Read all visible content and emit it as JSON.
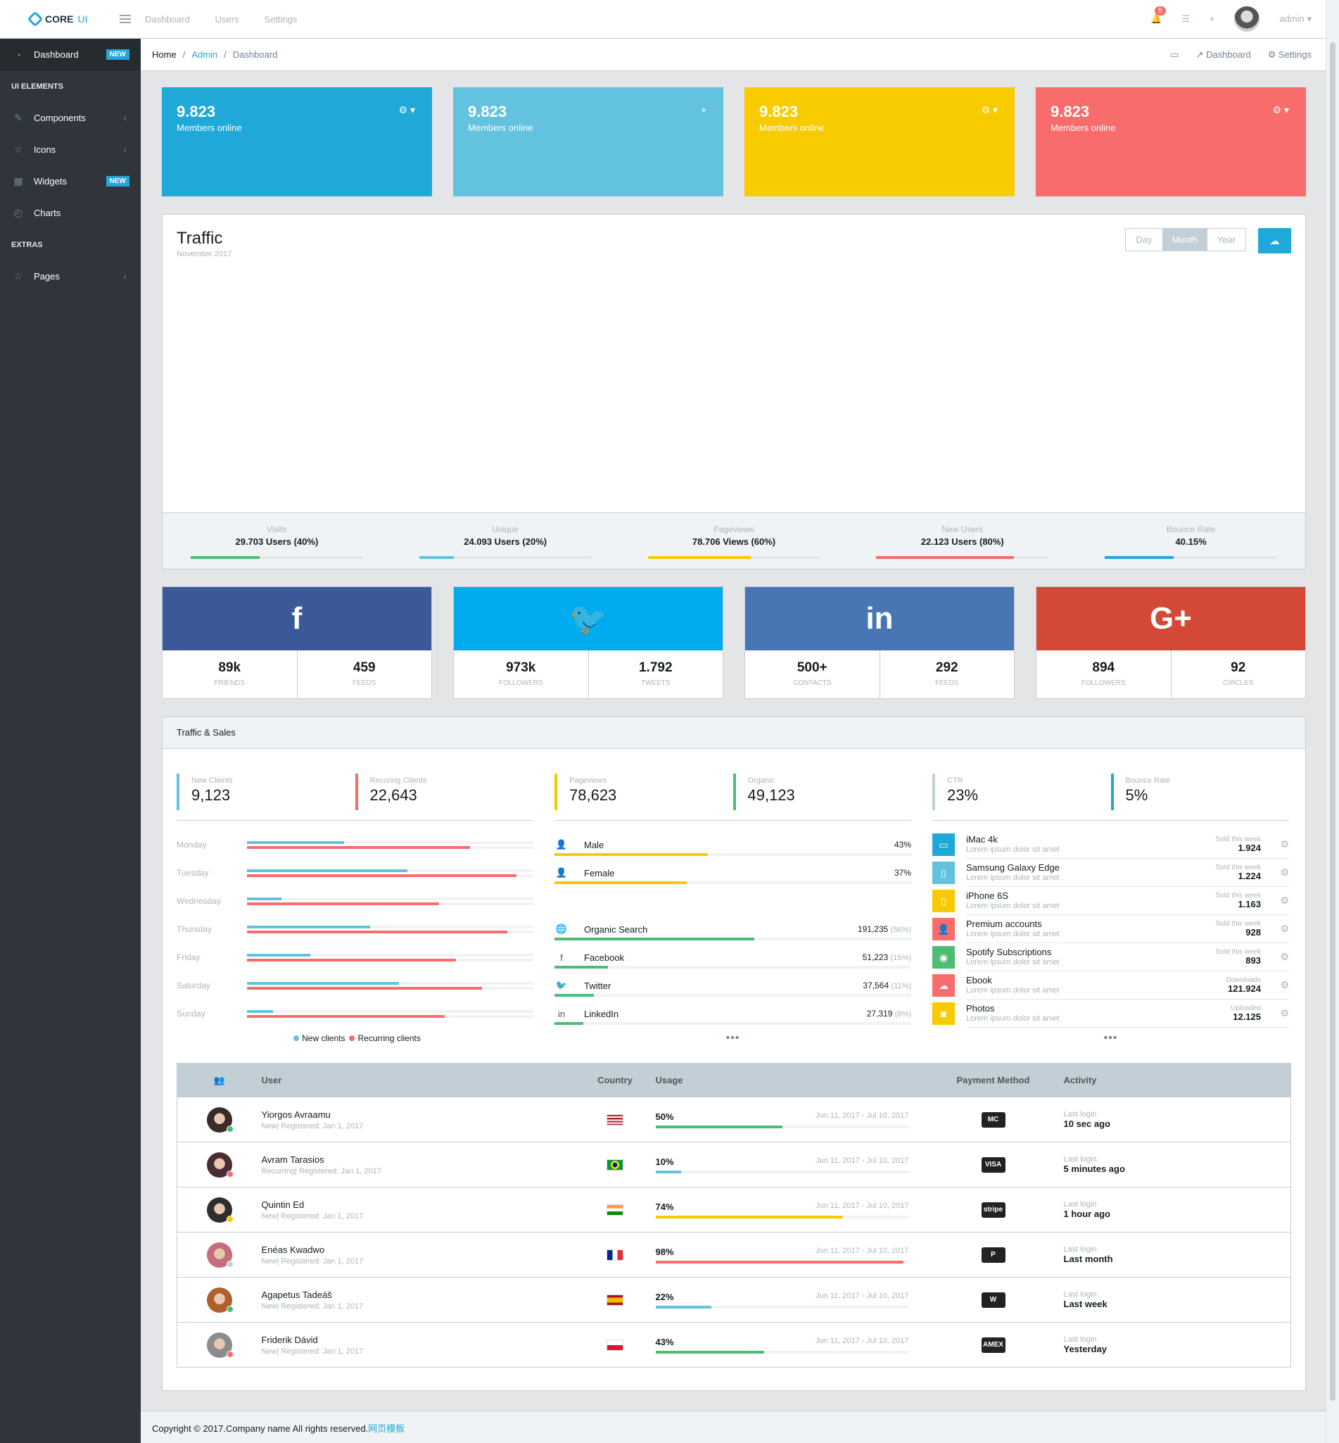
{
  "brand": {
    "name": "CORE",
    "suffix": "UI"
  },
  "topnav": [
    "Dashboard",
    "Users",
    "Settings"
  ],
  "topright": {
    "notif_count": "5",
    "user": "admin"
  },
  "sidebar": {
    "dashboard": "Dashboard",
    "new": "NEW",
    "section1": "UI ELEMENTS",
    "components": "Components",
    "icons": "Icons",
    "widgets": "Widgets",
    "charts": "Charts",
    "section2": "EXTRAS",
    "pages": "Pages"
  },
  "breadcrumb": {
    "home": "Home",
    "admin": "Admin",
    "current": "Dashboard",
    "right_dashboard": "Dashboard",
    "right_settings": "Settings"
  },
  "stat_cards": [
    {
      "value": "9.823",
      "label": "Members online",
      "color": "#20a8d8"
    },
    {
      "value": "9.823",
      "label": "Members online",
      "color": "#63c2de"
    },
    {
      "value": "9.823",
      "label": "Members online",
      "color": "#f8cb00"
    },
    {
      "value": "9.823",
      "label": "Members online",
      "color": "#f86c6b"
    }
  ],
  "traffic": {
    "title": "Traffic",
    "subtitle": "November 2017",
    "buttons": [
      "Day",
      "Month",
      "Year"
    ],
    "stats": [
      {
        "title": "Visits",
        "value": "29.703 Users (40%)",
        "pct": 40,
        "color": "#4dbd74"
      },
      {
        "title": "Unique",
        "value": "24.093 Users (20%)",
        "pct": 20,
        "color": "#63c2de"
      },
      {
        "title": "Pageviews",
        "value": "78.706 Views (60%)",
        "pct": 60,
        "color": "#f8cb00"
      },
      {
        "title": "New Users",
        "value": "22.123 Users (80%)",
        "pct": 80,
        "color": "#f86c6b"
      },
      {
        "title": "Bounce Rate",
        "value": "40.15%",
        "pct": 40.15,
        "color": "#20a8d8"
      }
    ]
  },
  "social": [
    {
      "icon": "f",
      "color": "#3b5998",
      "a_val": "89k",
      "a_lbl": "friends",
      "b_val": "459",
      "b_lbl": "feeds"
    },
    {
      "icon": "🐦",
      "color": "#00aced",
      "a_val": "973k",
      "a_lbl": "followers",
      "b_val": "1.792",
      "b_lbl": "tweets"
    },
    {
      "icon": "in",
      "color": "#4875b4",
      "a_val": "500+",
      "a_lbl": "contacts",
      "b_val": "292",
      "b_lbl": "feeds"
    },
    {
      "icon": "G+",
      "color": "#d34836",
      "a_val": "894",
      "a_lbl": "followers",
      "b_val": "92",
      "b_lbl": "circles"
    }
  ],
  "ts": {
    "title": "Traffic & Sales",
    "kpis": [
      {
        "t": "New Clients",
        "v": "9,123",
        "c": "#63c2de"
      },
      {
        "t": "Recuring Clients",
        "v": "22,643",
        "c": "#f86c6b"
      },
      {
        "t": "Pageviews",
        "v": "78,623",
        "c": "#f8cb00"
      },
      {
        "t": "Organic",
        "v": "49,123",
        "c": "#4dbd74"
      },
      {
        "t": "CTR",
        "v": "23%",
        "c": "#c2cfd6"
      },
      {
        "t": "Bounce Rate",
        "v": "5%",
        "c": "#20a8d8"
      }
    ],
    "days": [
      {
        "d": "Monday",
        "a": 34,
        "b": 78
      },
      {
        "d": "Tuesday",
        "a": 56,
        "b": 94
      },
      {
        "d": "Wednesday",
        "a": 12,
        "b": 67
      },
      {
        "d": "Thursday",
        "a": 43,
        "b": 91
      },
      {
        "d": "Friday",
        "a": 22,
        "b": 73
      },
      {
        "d": "Saturday",
        "a": 53,
        "b": 82
      },
      {
        "d": "Sunday",
        "a": 9,
        "b": 69
      }
    ],
    "legend": {
      "a": "New clients",
      "b": "Recurring clients"
    },
    "gender": [
      {
        "n": "Male",
        "p": "43%",
        "v": 43,
        "ic": "👤"
      },
      {
        "n": "Female",
        "p": "37%",
        "v": 37,
        "ic": "👤"
      }
    ],
    "sources": [
      {
        "n": "Organic Search",
        "v": "191,235",
        "p": "(56%)",
        "w": 56,
        "ic": "🌐"
      },
      {
        "n": "Facebook",
        "v": "51,223",
        "p": "(15%)",
        "w": 15,
        "ic": "f"
      },
      {
        "n": "Twitter",
        "v": "37,564",
        "p": "(11%)",
        "w": 11,
        "ic": "🐦"
      },
      {
        "n": "LinkedIn",
        "v": "27,319",
        "p": "(8%)",
        "w": 8,
        "ic": "in"
      }
    ],
    "products": [
      {
        "n": "iMac 4k",
        "s": "Lorem ipsum dolor sit amet",
        "l": "Sold this week",
        "v": "1.924",
        "c": "#20a8d8",
        "ic": "▭"
      },
      {
        "n": "Samsung Galaxy Edge",
        "s": "Lorem ipsum dolor sit amet",
        "l": "Sold this week",
        "v": "1.224",
        "c": "#63c2de",
        "ic": "▯"
      },
      {
        "n": "iPhone 6S",
        "s": "Lorem ipsum dolor sit amet",
        "l": "Sold this week",
        "v": "1.163",
        "c": "#f8cb00",
        "ic": "▯"
      },
      {
        "n": "Premium accounts",
        "s": "Lorem ipsum dolor sit amet",
        "l": "Sold this week",
        "v": "928",
        "c": "#f86c6b",
        "ic": "👤"
      },
      {
        "n": "Spotify Subscriptions",
        "s": "Lorem ipsum dolor sit amet",
        "l": "Sold this week",
        "v": "893",
        "c": "#4dbd74",
        "ic": "◉"
      },
      {
        "n": "Ebook",
        "s": "Lorem ipsum dolor sit amet",
        "l": "Downloads",
        "v": "121.924",
        "c": "#f86c6b",
        "ic": "☁"
      },
      {
        "n": "Photos",
        "s": "Lorem ipsum dolor sit amet",
        "l": "Uploaded",
        "v": "12.125",
        "c": "#f8cb00",
        "ic": "◙"
      }
    ],
    "more": "•••"
  },
  "table": {
    "headers": [
      "User",
      "Country",
      "Usage",
      "Payment Method",
      "Activity"
    ],
    "rows": [
      {
        "name": "Yiorgos Avraamu",
        "meta": "New| Registered: Jan 1, 2017",
        "status": "#4dbd74",
        "av": "#3a2a28",
        "flag": "us",
        "usage": "50%",
        "u": 50,
        "uc": "#4dbd74",
        "period": "Jun 11, 2017 - Jul 10, 2017",
        "pay": "MC",
        "act_lbl": "Last login",
        "act": "10 sec ago"
      },
      {
        "name": "Avram Tarasios",
        "meta": "Recurring| Registered: Jan 1, 2017",
        "status": "#f86c6b",
        "av": "#4a2d33",
        "flag": "br",
        "usage": "10%",
        "u": 10,
        "uc": "#63c2de",
        "period": "Jun 11, 2017 - Jul 10, 2017",
        "pay": "VISA",
        "act_lbl": "Last login",
        "act": "5 minutes ago"
      },
      {
        "name": "Quintin Ed",
        "meta": "New| Registered: Jan 1, 2017",
        "status": "#f8cb00",
        "av": "#2e2e2e",
        "flag": "in",
        "usage": "74%",
        "u": 74,
        "uc": "#f8cb00",
        "period": "Jun 11, 2017 - Jul 10, 2017",
        "pay": "stripe",
        "act_lbl": "Last login",
        "act": "1 hour ago"
      },
      {
        "name": "Enéas Kwadwo",
        "meta": "New| Registered: Jan 1, 2017",
        "status": "#c2cfd6",
        "av": "#c56d7a",
        "flag": "fr",
        "usage": "98%",
        "u": 98,
        "uc": "#f86c6b",
        "period": "Jun 11, 2017 - Jul 10, 2017",
        "pay": "P",
        "act_lbl": "Last login",
        "act": "Last month"
      },
      {
        "name": "Agapetus Tadeáš",
        "meta": "New| Registered: Jan 1, 2017",
        "status": "#4dbd74",
        "av": "#b0602e",
        "flag": "es",
        "usage": "22%",
        "u": 22,
        "uc": "#63c2de",
        "period": "Jun 11, 2017 - Jul 10, 2017",
        "pay": "W",
        "act_lbl": "Last login",
        "act": "Last week"
      },
      {
        "name": "Friderik Dávid",
        "meta": "New| Registered: Jan 1, 2017",
        "status": "#f86c6b",
        "av": "#8c8c8c",
        "flag": "pl",
        "usage": "43%",
        "u": 43,
        "uc": "#4dbd74",
        "period": "Jun 11, 2017 - Jul 10, 2017",
        "pay": "AMEX",
        "act_lbl": "Last login",
        "act": "Yesterday"
      }
    ]
  },
  "footer": {
    "text": "Copyright © 2017.Company name All rights reserved.",
    "link": "网页模板"
  }
}
